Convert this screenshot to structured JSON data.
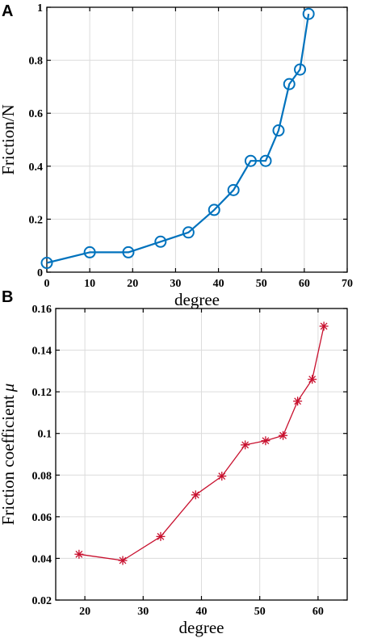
{
  "figure": {
    "panels": [
      "A",
      "B"
    ]
  },
  "chart_data": [
    {
      "panel": "A",
      "type": "line",
      "xlabel": "degree",
      "ylabel": "Friction/N",
      "xlim": [
        0,
        70
      ],
      "ylim": [
        0,
        1
      ],
      "x_ticks": [
        0,
        10,
        20,
        30,
        40,
        50,
        60,
        70
      ],
      "x_tick_labels": [
        "0",
        "10",
        "20",
        "30",
        "40",
        "50",
        "60",
        "70"
      ],
      "y_ticks": [
        0,
        0.2,
        0.4,
        0.6,
        0.8,
        1
      ],
      "y_tick_labels": [
        "0",
        "0.2",
        "0.4",
        "0.6",
        "0.8",
        "1"
      ],
      "grid": true,
      "marker": "circle",
      "color": "#0072BD",
      "x": [
        0,
        10,
        19,
        26.5,
        33,
        39,
        43.5,
        47.5,
        51,
        54,
        56.5,
        59,
        61
      ],
      "y": [
        0.035,
        0.075,
        0.075,
        0.115,
        0.15,
        0.235,
        0.31,
        0.42,
        0.42,
        0.535,
        0.71,
        0.765,
        0.975
      ]
    },
    {
      "panel": "B",
      "type": "line",
      "xlabel": "degree",
      "ylabel": "Friction coefficient",
      "ylabel_symbol": "μ",
      "xlim": [
        15,
        65
      ],
      "ylim": [
        0.02,
        0.16
      ],
      "x_ticks": [
        20,
        30,
        40,
        50,
        60
      ],
      "x_tick_labels": [
        "20",
        "30",
        "40",
        "50",
        "60"
      ],
      "y_ticks": [
        0.02,
        0.04,
        0.06,
        0.08,
        0.1,
        0.12,
        0.14,
        0.16
      ],
      "y_tick_labels": [
        "0.02",
        "0.04",
        "0.06",
        "0.08",
        "0.1",
        "0.12",
        "0.14",
        "0.16"
      ],
      "grid": true,
      "marker": "asterisk",
      "color": "#C8102E",
      "x": [
        19,
        26.5,
        33,
        39,
        43.5,
        47.5,
        51,
        54,
        56.5,
        59,
        61
      ],
      "y": [
        0.042,
        0.039,
        0.0505,
        0.0705,
        0.0795,
        0.0945,
        0.0965,
        0.099,
        0.1155,
        0.126,
        0.1515
      ]
    }
  ]
}
